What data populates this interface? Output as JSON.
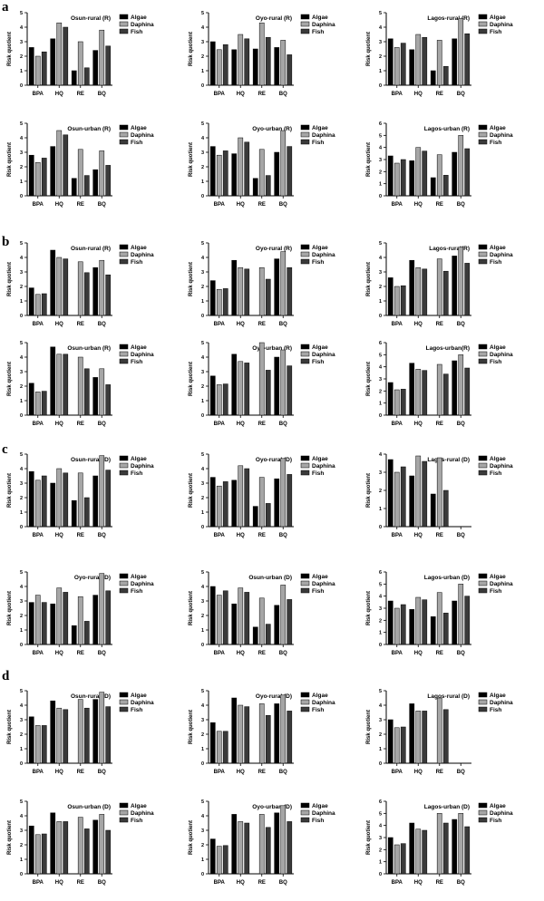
{
  "panel_labels": [
    "a",
    "b",
    "c",
    "d"
  ],
  "chart_data": [
    {
      "type": "bar",
      "panel": "a",
      "title": "Osun-rural (R)",
      "ylabel": "Risk quotient",
      "ylim": [
        0,
        5
      ],
      "yticks": [
        0,
        1,
        2,
        3,
        4,
        5
      ],
      "categories": [
        "BPA",
        "HQ",
        "RE",
        "BQ"
      ],
      "series": [
        {
          "name": "Algae",
          "values": [
            2.6,
            3.2,
            1.0,
            2.4
          ]
        },
        {
          "name": "Daphina",
          "values": [
            2.0,
            4.3,
            3.0,
            3.8
          ]
        },
        {
          "name": "Fish",
          "values": [
            2.3,
            4.0,
            1.2,
            2.7
          ]
        }
      ]
    },
    {
      "type": "bar",
      "panel": "a",
      "title": "Oyo-rural (R)",
      "ylabel": "Risk quotient",
      "ylim": [
        0,
        5
      ],
      "yticks": [
        0,
        1,
        2,
        3,
        4,
        5
      ],
      "categories": [
        "BPA",
        "HQ",
        "RE",
        "BQ"
      ],
      "series": [
        {
          "name": "Algae",
          "values": [
            3.0,
            2.45,
            2.5,
            2.6
          ]
        },
        {
          "name": "Daphina",
          "values": [
            2.45,
            3.5,
            4.3,
            3.1
          ]
        },
        {
          "name": "Fish",
          "values": [
            2.8,
            3.2,
            3.3,
            2.1
          ]
        }
      ]
    },
    {
      "type": "bar",
      "panel": "a",
      "title": "Lagos-rural (R)",
      "ylabel": "Risk quotient",
      "ylim": [
        0,
        5
      ],
      "yticks": [
        0,
        1,
        2,
        3,
        4,
        5
      ],
      "categories": [
        "BPA",
        "HQ",
        "RE",
        "BQ"
      ],
      "series": [
        {
          "name": "Algae",
          "values": [
            3.2,
            2.45,
            1.0,
            3.2
          ]
        },
        {
          "name": "Daphina",
          "values": [
            2.6,
            3.5,
            3.1,
            4.6
          ]
        },
        {
          "name": "Fish",
          "values": [
            2.9,
            3.3,
            1.3,
            3.55
          ]
        }
      ]
    },
    {
      "type": "bar",
      "panel": "a",
      "title": "Osun-urban (R)",
      "ylabel": "Risk quotient",
      "ylim": [
        0,
        5
      ],
      "yticks": [
        0,
        1,
        2,
        3,
        4,
        5
      ],
      "categories": [
        "BPA",
        "HQ",
        "RE",
        "BQ"
      ],
      "series": [
        {
          "name": "Algae",
          "values": [
            2.8,
            3.4,
            1.2,
            1.8
          ]
        },
        {
          "name": "Daphina",
          "values": [
            2.3,
            4.5,
            3.2,
            3.1
          ]
        },
        {
          "name": "Fish",
          "values": [
            2.6,
            4.2,
            1.4,
            2.1
          ]
        }
      ]
    },
    {
      "type": "bar",
      "panel": "a",
      "title": "Oyo-urban (R)",
      "ylabel": "Risk quotient",
      "ylim": [
        0,
        5
      ],
      "yticks": [
        0,
        1,
        2,
        3,
        4,
        5
      ],
      "categories": [
        "BPA",
        "HQ",
        "RE",
        "BQ"
      ],
      "series": [
        {
          "name": "Algae",
          "values": [
            3.4,
            2.9,
            1.2,
            3.0
          ]
        },
        {
          "name": "Daphina",
          "values": [
            2.8,
            4.0,
            3.2,
            4.5
          ]
        },
        {
          "name": "Fish",
          "values": [
            3.1,
            3.7,
            1.4,
            3.4
          ]
        }
      ]
    },
    {
      "type": "bar",
      "panel": "a",
      "title": "Lagos-urban (R)",
      "ylabel": "Risk quotient",
      "ylim": [
        0,
        6
      ],
      "yticks": [
        0,
        1,
        2,
        3,
        4,
        5,
        6
      ],
      "categories": [
        "BPA",
        "HQ",
        "RE",
        "BQ"
      ],
      "series": [
        {
          "name": "Algae",
          "values": [
            3.3,
            2.9,
            1.5,
            3.6
          ]
        },
        {
          "name": "Daphina",
          "values": [
            2.7,
            4.0,
            3.4,
            5.0
          ]
        },
        {
          "name": "Fish",
          "values": [
            3.0,
            3.7,
            1.7,
            3.9
          ]
        }
      ]
    },
    {
      "type": "bar",
      "panel": "b",
      "title": "Osun-rural (R)",
      "ylabel": "Risk quotient",
      "ylim": [
        0,
        5
      ],
      "yticks": [
        0,
        1,
        2,
        3,
        4,
        5
      ],
      "categories": [
        "BPA",
        "HQ",
        "RE",
        "BQ"
      ],
      "series": [
        {
          "name": "Algae",
          "values": [
            1.9,
            4.5,
            null,
            3.3
          ]
        },
        {
          "name": "Daphina",
          "values": [
            1.45,
            4.0,
            3.7,
            3.8
          ]
        },
        {
          "name": "Fish",
          "values": [
            1.5,
            3.9,
            2.95,
            2.8
          ]
        }
      ]
    },
    {
      "type": "bar",
      "panel": "b",
      "title": "Oyo-rural (R)",
      "ylabel": "Risk quotient",
      "ylim": [
        0,
        5
      ],
      "yticks": [
        0,
        1,
        2,
        3,
        4,
        5
      ],
      "categories": [
        "BPA",
        "HQ",
        "RE",
        "BQ"
      ],
      "series": [
        {
          "name": "Algae",
          "values": [
            2.4,
            3.8,
            null,
            3.9
          ]
        },
        {
          "name": "Daphina",
          "values": [
            1.8,
            3.3,
            3.3,
            4.4
          ]
        },
        {
          "name": "Fish",
          "values": [
            1.85,
            3.2,
            2.5,
            3.3
          ]
        }
      ]
    },
    {
      "type": "bar",
      "panel": "b",
      "title": "Lagos-rural(R)",
      "ylabel": "Risk quotient",
      "ylim": [
        0,
        5
      ],
      "yticks": [
        0,
        1,
        2,
        3,
        4,
        5
      ],
      "categories": [
        "BPA",
        "HQ",
        "RE",
        "BQ"
      ],
      "series": [
        {
          "name": "Algae",
          "values": [
            2.6,
            3.8,
            null,
            4.1
          ]
        },
        {
          "name": "Daphina",
          "values": [
            2.0,
            3.3,
            3.9,
            4.7
          ]
        },
        {
          "name": "Fish",
          "values": [
            2.05,
            3.2,
            3.05,
            3.6
          ]
        }
      ]
    },
    {
      "type": "bar",
      "panel": "b",
      "title": "Osun-urban (R)",
      "ylabel": "Risk quotient",
      "ylim": [
        0,
        5
      ],
      "yticks": [
        0,
        1,
        2,
        3,
        4,
        5
      ],
      "categories": [
        "BPA",
        "HQ",
        "RE",
        "BQ"
      ],
      "series": [
        {
          "name": "Algae",
          "values": [
            2.2,
            4.7,
            null,
            2.6
          ]
        },
        {
          "name": "Daphina",
          "values": [
            1.6,
            4.2,
            4.0,
            3.2
          ]
        },
        {
          "name": "Fish",
          "values": [
            1.65,
            4.2,
            3.2,
            2.1
          ]
        }
      ]
    },
    {
      "type": "bar",
      "panel": "b",
      "title": "Oyo-urban (R)",
      "ylabel": "Risk quotient",
      "ylim": [
        0,
        5
      ],
      "yticks": [
        0,
        1,
        2,
        3,
        4,
        5
      ],
      "categories": [
        "BPA",
        "HQ",
        "RE",
        "BQ"
      ],
      "series": [
        {
          "name": "Algae",
          "values": [
            2.7,
            4.2,
            null,
            4.0
          ]
        },
        {
          "name": "Daphina",
          "values": [
            2.1,
            3.7,
            5.0,
            4.5
          ]
        },
        {
          "name": "Fish",
          "values": [
            2.15,
            3.6,
            3.1,
            3.4
          ]
        }
      ]
    },
    {
      "type": "bar",
      "panel": "b",
      "title": "Lagos-urban(R)",
      "ylabel": "Risk quotient",
      "ylim": [
        0,
        6
      ],
      "yticks": [
        0,
        1,
        2,
        3,
        4,
        5,
        6
      ],
      "categories": [
        "BPA",
        "HQ",
        "RE",
        "BQ"
      ],
      "series": [
        {
          "name": "Algae",
          "values": [
            2.7,
            4.3,
            null,
            4.5
          ]
        },
        {
          "name": "Daphina",
          "values": [
            2.1,
            3.8,
            4.2,
            5.0
          ]
        },
        {
          "name": "Fish",
          "values": [
            2.15,
            3.7,
            3.4,
            3.9
          ]
        }
      ]
    },
    {
      "type": "bar",
      "panel": "c",
      "title": "Osun-rural (D)",
      "ylabel": "Risk quotient",
      "ylim": [
        0,
        5
      ],
      "yticks": [
        0,
        1,
        2,
        3,
        4,
        5
      ],
      "categories": [
        "BPA",
        "HQ",
        "RE",
        "BQ"
      ],
      "series": [
        {
          "name": "Algae",
          "values": [
            3.8,
            3.0,
            1.8,
            3.5
          ]
        },
        {
          "name": "Daphina",
          "values": [
            3.2,
            4.0,
            3.7,
            4.9
          ]
        },
        {
          "name": "Fish",
          "values": [
            3.5,
            3.7,
            2.0,
            3.9
          ]
        }
      ]
    },
    {
      "type": "bar",
      "panel": "c",
      "title": "Oyo-rural (D)",
      "ylabel": "Risk quotient",
      "ylim": [
        0,
        5
      ],
      "yticks": [
        0,
        1,
        2,
        3,
        4,
        5
      ],
      "categories": [
        "BPA",
        "HQ",
        "RE",
        "BQ"
      ],
      "series": [
        {
          "name": "Algae",
          "values": [
            3.4,
            3.2,
            1.4,
            3.3
          ]
        },
        {
          "name": "Daphina",
          "values": [
            2.8,
            4.2,
            3.4,
            4.7
          ]
        },
        {
          "name": "Fish",
          "values": [
            3.1,
            4.0,
            1.6,
            3.6
          ]
        }
      ]
    },
    {
      "type": "bar",
      "panel": "c",
      "title": "Lagos-rural (D)",
      "ylabel": "Risk quotient",
      "ylim": [
        0,
        4
      ],
      "yticks": [
        0,
        1,
        2,
        3,
        4
      ],
      "categories": [
        "BPA",
        "HQ",
        "RE",
        "BQ"
      ],
      "series": [
        {
          "name": "Algae",
          "values": [
            3.7,
            2.8,
            1.8,
            null
          ]
        },
        {
          "name": "Daphina",
          "values": [
            3.0,
            3.9,
            3.8,
            null
          ]
        },
        {
          "name": "Fish",
          "values": [
            3.3,
            3.6,
            2.0,
            null
          ]
        }
      ]
    },
    {
      "type": "bar",
      "panel": "c",
      "title": "Oyo-rural (D)",
      "ylabel": "Risk quotient",
      "ylim": [
        0,
        5
      ],
      "yticks": [
        0,
        1,
        2,
        3,
        4,
        5
      ],
      "categories": [
        "BPA",
        "HQ",
        "RE",
        "BQ"
      ],
      "series": [
        {
          "name": "Algae",
          "values": [
            2.9,
            2.8,
            1.3,
            3.4
          ]
        },
        {
          "name": "Daphina",
          "values": [
            3.4,
            3.9,
            3.3,
            4.9
          ]
        },
        {
          "name": "Fish",
          "values": [
            2.9,
            3.6,
            1.6,
            3.7
          ]
        }
      ]
    },
    {
      "type": "bar",
      "panel": "c",
      "title": "Osun-urban (D)",
      "ylabel": "Risk quotient",
      "ylim": [
        0,
        5
      ],
      "yticks": [
        0,
        1,
        2,
        3,
        4,
        5
      ],
      "categories": [
        "BPA",
        "HQ",
        "RE",
        "BQ"
      ],
      "series": [
        {
          "name": "Algae",
          "values": [
            4.0,
            2.8,
            1.2,
            2.7
          ]
        },
        {
          "name": "Daphina",
          "values": [
            3.4,
            3.9,
            3.2,
            4.1
          ]
        },
        {
          "name": "Fish",
          "values": [
            3.7,
            3.6,
            1.4,
            3.1
          ]
        }
      ]
    },
    {
      "type": "bar",
      "panel": "c",
      "title": "Lagos-urban (D)",
      "ylabel": "Risk quotient",
      "ylim": [
        0,
        6
      ],
      "yticks": [
        0,
        1,
        2,
        3,
        4,
        5,
        6
      ],
      "categories": [
        "BPA",
        "HQ",
        "RE",
        "BQ"
      ],
      "series": [
        {
          "name": "Algae",
          "values": [
            3.6,
            2.9,
            2.3,
            3.6
          ]
        },
        {
          "name": "Daphina",
          "values": [
            3.0,
            3.9,
            4.3,
            5.0
          ]
        },
        {
          "name": "Fish",
          "values": [
            3.3,
            3.7,
            2.6,
            4.0
          ]
        }
      ]
    },
    {
      "type": "bar",
      "panel": "d",
      "title": "Osun-rural (D)",
      "ylabel": "Risk quotient",
      "ylim": [
        0,
        5
      ],
      "yticks": [
        0,
        1,
        2,
        3,
        4,
        5
      ],
      "categories": [
        "BPA",
        "HQ",
        "RE",
        "BQ"
      ],
      "series": [
        {
          "name": "Algae",
          "values": [
            3.2,
            4.3,
            null,
            4.4
          ]
        },
        {
          "name": "Daphina",
          "values": [
            2.6,
            3.8,
            4.4,
            4.9
          ]
        },
        {
          "name": "Fish",
          "values": [
            2.6,
            3.7,
            3.8,
            3.9
          ]
        }
      ]
    },
    {
      "type": "bar",
      "panel": "d",
      "title": "Oyo-rural (D)",
      "ylabel": "Risk quotient",
      "ylim": [
        0,
        5
      ],
      "yticks": [
        0,
        1,
        2,
        3,
        4,
        5
      ],
      "categories": [
        "BPA",
        "HQ",
        "RE",
        "BQ"
      ],
      "series": [
        {
          "name": "Algae",
          "values": [
            2.8,
            4.5,
            null,
            4.1
          ]
        },
        {
          "name": "Daphina",
          "values": [
            2.2,
            4.0,
            4.1,
            4.7
          ]
        },
        {
          "name": "Fish",
          "values": [
            2.2,
            3.9,
            3.3,
            3.6
          ]
        }
      ]
    },
    {
      "type": "bar",
      "panel": "d",
      "title": "Lagos-rural (D)",
      "ylabel": "Risk quotient",
      "ylim": [
        0,
        5
      ],
      "yticks": [
        0,
        1,
        2,
        3,
        4,
        5
      ],
      "categories": [
        "BPA",
        "HQ",
        "RE",
        "BQ"
      ],
      "series": [
        {
          "name": "Algae",
          "values": [
            3.0,
            4.1,
            null,
            null
          ]
        },
        {
          "name": "Daphina",
          "values": [
            2.45,
            3.6,
            4.5,
            null
          ]
        },
        {
          "name": "Fish",
          "values": [
            2.5,
            3.6,
            3.7,
            null
          ]
        }
      ]
    },
    {
      "type": "bar",
      "panel": "d",
      "title": "Osun-urban (D)",
      "ylabel": "Risk quotient",
      "ylim": [
        0,
        5
      ],
      "yticks": [
        0,
        1,
        2,
        3,
        4,
        5
      ],
      "categories": [
        "BPA",
        "HQ",
        "RE",
        "BQ"
      ],
      "series": [
        {
          "name": "Algae",
          "values": [
            3.3,
            4.2,
            null,
            3.7
          ]
        },
        {
          "name": "Daphina",
          "values": [
            2.7,
            3.6,
            3.9,
            4.1
          ]
        },
        {
          "name": "Fish",
          "values": [
            2.75,
            3.6,
            3.1,
            3.0
          ]
        }
      ]
    },
    {
      "type": "bar",
      "panel": "d",
      "title": "Oyo-urban (D)",
      "ylabel": "Risk quotient",
      "ylim": [
        0,
        5
      ],
      "yticks": [
        0,
        1,
        2,
        3,
        4,
        5
      ],
      "categories": [
        "BPA",
        "HQ",
        "RE",
        "BQ"
      ],
      "series": [
        {
          "name": "Algae",
          "values": [
            2.4,
            4.1,
            null,
            4.2
          ]
        },
        {
          "name": "Daphina",
          "values": [
            1.9,
            3.6,
            4.1,
            4.7
          ]
        },
        {
          "name": "Fish",
          "values": [
            1.95,
            3.5,
            3.2,
            3.6
          ]
        }
      ]
    },
    {
      "type": "bar",
      "panel": "d",
      "title": "Lagos-urban (D)",
      "ylabel": "Risk quotient",
      "ylim": [
        0,
        6
      ],
      "yticks": [
        0,
        1,
        2,
        3,
        4,
        5,
        6
      ],
      "categories": [
        "BPA",
        "HQ",
        "RE",
        "BQ"
      ],
      "series": [
        {
          "name": "Algae",
          "values": [
            3.0,
            4.2,
            null,
            4.5
          ]
        },
        {
          "name": "Daphina",
          "values": [
            2.4,
            3.7,
            5.0,
            5.0
          ]
        },
        {
          "name": "Fish",
          "values": [
            2.5,
            3.6,
            4.2,
            3.9
          ]
        }
      ]
    }
  ]
}
